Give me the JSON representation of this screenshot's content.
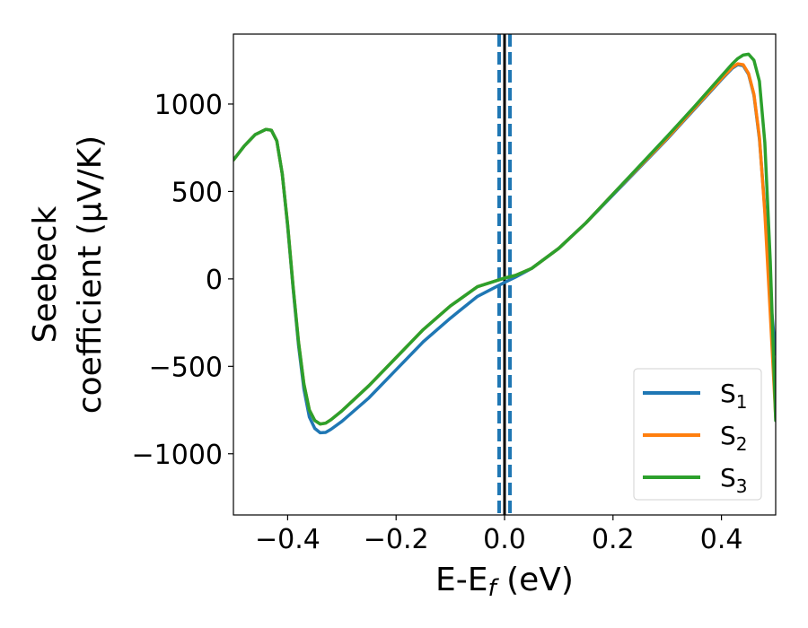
{
  "chart_data": {
    "type": "line",
    "xlabel_main": "E-E",
    "xlabel_sub": "f",
    "xlabel_unit": " (eV)",
    "ylabel_line1": "Seebeck",
    "ylabel_line2": "coefficient  (μV/K)",
    "xlim": [
      -0.5,
      0.5
    ],
    "ylim": [
      -1350,
      1400
    ],
    "xticks": [
      -0.4,
      -0.2,
      0.0,
      0.2,
      0.4
    ],
    "xtick_labels": [
      "−0.4",
      "−0.2",
      "0.0",
      "0.2",
      "0.4"
    ],
    "yticks": [
      -1000,
      -500,
      0,
      500,
      1000
    ],
    "ytick_labels": [
      "−1000",
      "−500",
      "0",
      "500",
      "1000"
    ],
    "grid": false,
    "legend_position": "lower-right",
    "vlines": [
      {
        "x": -0.01,
        "style": "dashed",
        "color": "#1f77b4"
      },
      {
        "x": 0.01,
        "style": "dashed",
        "color": "#1f77b4"
      },
      {
        "x": 0.0,
        "style": "solid",
        "color": "#000000"
      }
    ],
    "series": [
      {
        "name": "S",
        "sub": "1",
        "color": "#1f77b4",
        "points": [
          [
            -0.5,
            680
          ],
          [
            -0.48,
            760
          ],
          [
            -0.46,
            825
          ],
          [
            -0.44,
            855
          ],
          [
            -0.43,
            850
          ],
          [
            -0.42,
            790
          ],
          [
            -0.41,
            600
          ],
          [
            -0.4,
            300
          ],
          [
            -0.39,
            -50
          ],
          [
            -0.38,
            -380
          ],
          [
            -0.37,
            -630
          ],
          [
            -0.36,
            -790
          ],
          [
            -0.35,
            -855
          ],
          [
            -0.34,
            -880
          ],
          [
            -0.33,
            -878
          ],
          [
            -0.32,
            -860
          ],
          [
            -0.3,
            -815
          ],
          [
            -0.25,
            -680
          ],
          [
            -0.2,
            -520
          ],
          [
            -0.15,
            -360
          ],
          [
            -0.1,
            -225
          ],
          [
            -0.05,
            -100
          ],
          [
            0.0,
            -20
          ],
          [
            0.02,
            10
          ],
          [
            0.05,
            60
          ],
          [
            0.1,
            175
          ],
          [
            0.15,
            320
          ],
          [
            0.2,
            480
          ],
          [
            0.25,
            640
          ],
          [
            0.3,
            800
          ],
          [
            0.35,
            970
          ],
          [
            0.4,
            1140
          ],
          [
            0.42,
            1205
          ],
          [
            0.43,
            1225
          ],
          [
            0.44,
            1220
          ],
          [
            0.45,
            1170
          ],
          [
            0.46,
            1050
          ],
          [
            0.47,
            800
          ],
          [
            0.48,
            400
          ],
          [
            0.49,
            -100
          ],
          [
            0.5,
            -430
          ]
        ]
      },
      {
        "name": "S",
        "sub": "2",
        "color": "#ff7f0e",
        "points": [
          [
            -0.5,
            680
          ],
          [
            -0.48,
            760
          ],
          [
            -0.46,
            825
          ],
          [
            -0.44,
            855
          ],
          [
            -0.43,
            850
          ],
          [
            -0.42,
            790
          ],
          [
            -0.41,
            600
          ],
          [
            -0.4,
            310
          ],
          [
            -0.39,
            -40
          ],
          [
            -0.38,
            -360
          ],
          [
            -0.37,
            -600
          ],
          [
            -0.36,
            -750
          ],
          [
            -0.35,
            -810
          ],
          [
            -0.34,
            -830
          ],
          [
            -0.33,
            -825
          ],
          [
            -0.32,
            -805
          ],
          [
            -0.3,
            -755
          ],
          [
            -0.25,
            -610
          ],
          [
            -0.2,
            -450
          ],
          [
            -0.15,
            -290
          ],
          [
            -0.1,
            -155
          ],
          [
            -0.05,
            -45
          ],
          [
            0.0,
            5
          ],
          [
            0.02,
            20
          ],
          [
            0.05,
            60
          ],
          [
            0.1,
            175
          ],
          [
            0.15,
            320
          ],
          [
            0.2,
            485
          ],
          [
            0.25,
            645
          ],
          [
            0.3,
            805
          ],
          [
            0.35,
            975
          ],
          [
            0.4,
            1145
          ],
          [
            0.42,
            1210
          ],
          [
            0.43,
            1230
          ],
          [
            0.44,
            1225
          ],
          [
            0.45,
            1175
          ],
          [
            0.46,
            1055
          ],
          [
            0.47,
            810
          ],
          [
            0.48,
            380
          ],
          [
            0.49,
            -200
          ],
          [
            0.5,
            -790
          ]
        ]
      },
      {
        "name": "S",
        "sub": "3",
        "color": "#2ca02c",
        "points": [
          [
            -0.5,
            680
          ],
          [
            -0.48,
            760
          ],
          [
            -0.46,
            825
          ],
          [
            -0.44,
            855
          ],
          [
            -0.43,
            850
          ],
          [
            -0.42,
            790
          ],
          [
            -0.41,
            600
          ],
          [
            -0.4,
            310
          ],
          [
            -0.39,
            -40
          ],
          [
            -0.38,
            -360
          ],
          [
            -0.37,
            -600
          ],
          [
            -0.36,
            -750
          ],
          [
            -0.35,
            -810
          ],
          [
            -0.34,
            -830
          ],
          [
            -0.33,
            -825
          ],
          [
            -0.32,
            -805
          ],
          [
            -0.3,
            -755
          ],
          [
            -0.25,
            -610
          ],
          [
            -0.2,
            -450
          ],
          [
            -0.15,
            -290
          ],
          [
            -0.1,
            -155
          ],
          [
            -0.05,
            -45
          ],
          [
            0.0,
            5
          ],
          [
            0.02,
            20
          ],
          [
            0.05,
            60
          ],
          [
            0.1,
            175
          ],
          [
            0.15,
            320
          ],
          [
            0.2,
            485
          ],
          [
            0.25,
            650
          ],
          [
            0.3,
            815
          ],
          [
            0.35,
            985
          ],
          [
            0.4,
            1160
          ],
          [
            0.42,
            1230
          ],
          [
            0.43,
            1260
          ],
          [
            0.44,
            1280
          ],
          [
            0.45,
            1285
          ],
          [
            0.46,
            1250
          ],
          [
            0.47,
            1130
          ],
          [
            0.48,
            780
          ],
          [
            0.49,
            100
          ],
          [
            0.5,
            -810
          ]
        ]
      }
    ]
  }
}
